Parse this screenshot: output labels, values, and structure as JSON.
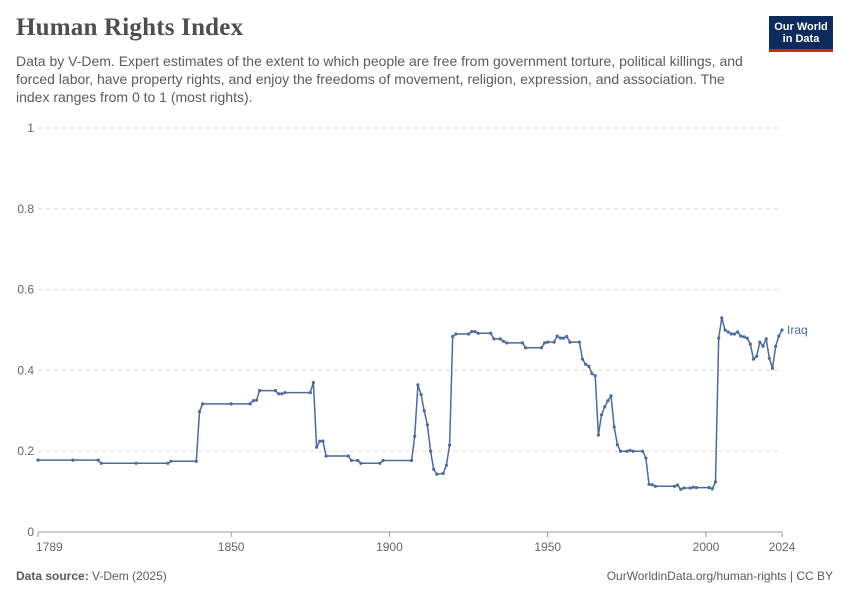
{
  "header": {
    "title": "Human Rights Index",
    "subtitle": "Data by V-Dem. Expert estimates of the extent to which people are free from government torture, political killings, and forced labor, have property rights, and enjoy the freedoms of movement, religion, expression, and association. The index ranges from 0 to 1 (most rights).",
    "logo_line1": "Our World",
    "logo_line2": "in Data"
  },
  "footer": {
    "source_label": "Data source:",
    "source_value": "V-Dem (2025)",
    "credit": "OurWorldinData.org/human-rights | CC BY"
  },
  "colors": {
    "series": "#4c6a9c",
    "grid": "#dddddd",
    "axis": "#999999"
  },
  "chart_data": {
    "type": "line",
    "title": "Human Rights Index",
    "xlabel": "",
    "ylabel": "",
    "xlim": [
      1789,
      2024
    ],
    "ylim": [
      0,
      1
    ],
    "x_ticks": [
      1789,
      1850,
      1900,
      1950,
      2000,
      2024
    ],
    "y_ticks": [
      0,
      0.2,
      0.4,
      0.6,
      0.8,
      1
    ],
    "y_tick_labels": [
      "0",
      "0.2",
      "0.4",
      "0.6",
      "0.8",
      "1"
    ],
    "grid": "horizontal dashed",
    "series": [
      {
        "name": "Iraq",
        "points": [
          [
            1789,
            0.178
          ],
          [
            1800,
            0.178
          ],
          [
            1808,
            0.178
          ],
          [
            1809,
            0.17
          ],
          [
            1820,
            0.17
          ],
          [
            1830,
            0.17
          ],
          [
            1831,
            0.175
          ],
          [
            1839,
            0.175
          ],
          [
            1840,
            0.298
          ],
          [
            1841,
            0.317
          ],
          [
            1850,
            0.317
          ],
          [
            1856,
            0.317
          ],
          [
            1857,
            0.325
          ],
          [
            1858,
            0.326
          ],
          [
            1859,
            0.35
          ],
          [
            1864,
            0.35
          ],
          [
            1865,
            0.342
          ],
          [
            1866,
            0.342
          ],
          [
            1867,
            0.345
          ],
          [
            1875,
            0.345
          ],
          [
            1876,
            0.37
          ],
          [
            1877,
            0.21
          ],
          [
            1878,
            0.225
          ],
          [
            1879,
            0.225
          ],
          [
            1880,
            0.188
          ],
          [
            1887,
            0.188
          ],
          [
            1888,
            0.177
          ],
          [
            1890,
            0.177
          ],
          [
            1891,
            0.17
          ],
          [
            1897,
            0.17
          ],
          [
            1898,
            0.177
          ],
          [
            1907,
            0.177
          ],
          [
            1908,
            0.237
          ],
          [
            1909,
            0.364
          ],
          [
            1910,
            0.34
          ],
          [
            1911,
            0.3
          ],
          [
            1912,
            0.265
          ],
          [
            1913,
            0.2
          ],
          [
            1914,
            0.155
          ],
          [
            1915,
            0.143
          ],
          [
            1917,
            0.145
          ],
          [
            1918,
            0.165
          ],
          [
            1919,
            0.215
          ],
          [
            1920,
            0.484
          ],
          [
            1921,
            0.49
          ],
          [
            1925,
            0.49
          ],
          [
            1926,
            0.496
          ],
          [
            1927,
            0.496
          ],
          [
            1928,
            0.492
          ],
          [
            1932,
            0.492
          ],
          [
            1933,
            0.478
          ],
          [
            1935,
            0.478
          ],
          [
            1936,
            0.472
          ],
          [
            1937,
            0.468
          ],
          [
            1942,
            0.468
          ],
          [
            1943,
            0.456
          ],
          [
            1948,
            0.456
          ],
          [
            1949,
            0.468
          ],
          [
            1950,
            0.47
          ],
          [
            1952,
            0.47
          ],
          [
            1953,
            0.485
          ],
          [
            1954,
            0.48
          ],
          [
            1955,
            0.48
          ],
          [
            1956,
            0.484
          ],
          [
            1957,
            0.47
          ],
          [
            1960,
            0.47
          ],
          [
            1961,
            0.428
          ],
          [
            1962,
            0.415
          ],
          [
            1963,
            0.41
          ],
          [
            1964,
            0.392
          ],
          [
            1965,
            0.387
          ],
          [
            1966,
            0.24
          ],
          [
            1967,
            0.29
          ],
          [
            1968,
            0.31
          ],
          [
            1969,
            0.325
          ],
          [
            1970,
            0.337
          ],
          [
            1971,
            0.26
          ],
          [
            1972,
            0.216
          ],
          [
            1973,
            0.2
          ],
          [
            1975,
            0.2
          ],
          [
            1976,
            0.202
          ],
          [
            1977,
            0.2
          ],
          [
            1980,
            0.2
          ],
          [
            1981,
            0.183
          ],
          [
            1982,
            0.118
          ],
          [
            1983,
            0.117
          ],
          [
            1984,
            0.113
          ],
          [
            1990,
            0.113
          ],
          [
            1991,
            0.116
          ],
          [
            1992,
            0.106
          ],
          [
            1993,
            0.109
          ],
          [
            1995,
            0.109
          ],
          [
            1996,
            0.111
          ],
          [
            1997,
            0.11
          ],
          [
            2001,
            0.11
          ],
          [
            2002,
            0.107
          ],
          [
            2003,
            0.124
          ],
          [
            2004,
            0.48
          ],
          [
            2005,
            0.53
          ],
          [
            2006,
            0.5
          ],
          [
            2007,
            0.495
          ],
          [
            2008,
            0.49
          ],
          [
            2009,
            0.49
          ],
          [
            2010,
            0.495
          ],
          [
            2011,
            0.485
          ],
          [
            2012,
            0.483
          ],
          [
            2013,
            0.48
          ],
          [
            2014,
            0.465
          ],
          [
            2015,
            0.428
          ],
          [
            2016,
            0.435
          ],
          [
            2017,
            0.47
          ],
          [
            2018,
            0.46
          ],
          [
            2019,
            0.478
          ],
          [
            2020,
            0.43
          ],
          [
            2021,
            0.405
          ],
          [
            2022,
            0.46
          ],
          [
            2023,
            0.485
          ],
          [
            2024,
            0.5
          ]
        ]
      }
    ]
  }
}
